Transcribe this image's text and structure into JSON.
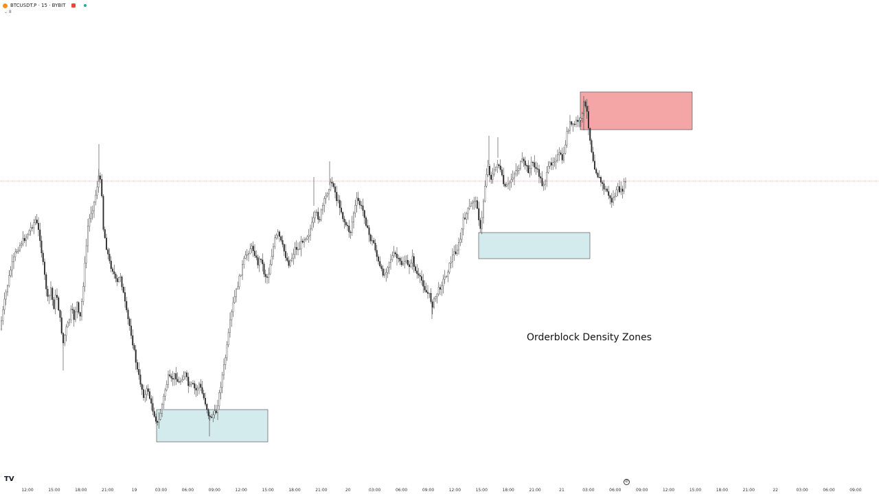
{
  "header": {
    "symbol": "BTCUSDT.P · 15 · BYBIT",
    "collapse_glyph": "⌄ 8"
  },
  "annotation": "Orderblock Density Zones",
  "logo_text": "TV",
  "nav_icon": "compass-icon",
  "colors": {
    "bull": "#ffffff",
    "bear": "#2b2b2b",
    "wick": "#3a3a3a",
    "bullish_zone": "#d4ebee",
    "bearish_zone": "#f4a6a6",
    "price_line": "#e8a0a0"
  },
  "chart_data": {
    "type": "candlestick",
    "interval": "15",
    "x_ticks": [
      "12:00",
      "15:00",
      "18:00",
      "21:00",
      "19",
      "03:00",
      "06:00",
      "09:00",
      "12:00",
      "15:00",
      "18:00",
      "21:00",
      "20",
      "03:00",
      "06:00",
      "09:00",
      "12:00",
      "15:00",
      "18:00",
      "21:00",
      "21",
      "03:00",
      "06:00",
      "09:00",
      "12:00",
      "15:00",
      "18:00",
      "21:00",
      "22",
      "03:00",
      "06:00",
      "09:00"
    ],
    "price_path": [
      [
        0,
        480
      ],
      [
        8,
        430
      ],
      [
        15,
        395
      ],
      [
        22,
        370
      ],
      [
        30,
        355
      ],
      [
        38,
        345
      ],
      [
        46,
        330
      ],
      [
        52,
        320
      ],
      [
        58,
        345
      ],
      [
        62,
        380
      ],
      [
        66,
        410
      ],
      [
        70,
        440
      ],
      [
        74,
        420
      ],
      [
        78,
        450
      ],
      [
        82,
        425
      ],
      [
        88,
        470
      ],
      [
        92,
        500
      ],
      [
        96,
        480
      ],
      [
        100,
        470
      ],
      [
        104,
        450
      ],
      [
        108,
        465
      ],
      [
        112,
        440
      ],
      [
        116,
        470
      ],
      [
        120,
        430
      ],
      [
        124,
        380
      ],
      [
        128,
        330
      ],
      [
        132,
        310
      ],
      [
        136,
        300
      ],
      [
        140,
        280
      ],
      [
        144,
        255
      ],
      [
        148,
        275
      ],
      [
        150,
        330
      ],
      [
        155,
        360
      ],
      [
        160,
        385
      ],
      [
        165,
        395
      ],
      [
        170,
        415
      ],
      [
        175,
        400
      ],
      [
        180,
        430
      ],
      [
        185,
        460
      ],
      [
        190,
        480
      ],
      [
        195,
        510
      ],
      [
        200,
        540
      ],
      [
        205,
        560
      ],
      [
        210,
        580
      ],
      [
        215,
        565
      ],
      [
        220,
        590
      ],
      [
        225,
        605
      ],
      [
        230,
        620
      ],
      [
        235,
        595
      ],
      [
        240,
        570
      ],
      [
        245,
        550
      ],
      [
        250,
        555
      ],
      [
        255,
        545
      ],
      [
        260,
        560
      ],
      [
        265,
        550
      ],
      [
        270,
        545
      ],
      [
        275,
        565
      ],
      [
        280,
        560
      ],
      [
        285,
        570
      ],
      [
        290,
        560
      ],
      [
        295,
        575
      ],
      [
        300,
        590
      ],
      [
        305,
        610
      ],
      [
        310,
        605
      ],
      [
        315,
        600
      ],
      [
        320,
        570
      ],
      [
        325,
        540
      ],
      [
        330,
        510
      ],
      [
        335,
        470
      ],
      [
        340,
        440
      ],
      [
        345,
        420
      ],
      [
        350,
        400
      ],
      [
        355,
        380
      ],
      [
        360,
        370
      ],
      [
        365,
        360
      ],
      [
        370,
        365
      ],
      [
        375,
        385
      ],
      [
        380,
        375
      ],
      [
        385,
        400
      ],
      [
        390,
        405
      ],
      [
        395,
        375
      ],
      [
        400,
        350
      ],
      [
        405,
        340
      ],
      [
        410,
        355
      ],
      [
        415,
        370
      ],
      [
        420,
        385
      ],
      [
        425,
        375
      ],
      [
        430,
        360
      ],
      [
        435,
        365
      ],
      [
        440,
        350
      ],
      [
        445,
        345
      ],
      [
        450,
        340
      ],
      [
        455,
        325
      ],
      [
        460,
        310
      ],
      [
        465,
        320
      ],
      [
        470,
        300
      ],
      [
        475,
        285
      ],
      [
        480,
        270
      ],
      [
        485,
        265
      ],
      [
        490,
        290
      ],
      [
        495,
        300
      ],
      [
        500,
        320
      ],
      [
        505,
        330
      ],
      [
        510,
        340
      ],
      [
        515,
        310
      ],
      [
        520,
        290
      ],
      [
        525,
        300
      ],
      [
        530,
        310
      ],
      [
        535,
        335
      ],
      [
        540,
        350
      ],
      [
        545,
        355
      ],
      [
        550,
        380
      ],
      [
        555,
        395
      ],
      [
        560,
        400
      ],
      [
        565,
        385
      ],
      [
        570,
        375
      ],
      [
        575,
        370
      ],
      [
        580,
        380
      ],
      [
        585,
        385
      ],
      [
        590,
        380
      ],
      [
        595,
        390
      ],
      [
        600,
        375
      ],
      [
        605,
        395
      ],
      [
        610,
        405
      ],
      [
        615,
        410
      ],
      [
        620,
        425
      ],
      [
        625,
        430
      ],
      [
        630,
        445
      ],
      [
        635,
        430
      ],
      [
        640,
        420
      ],
      [
        645,
        410
      ],
      [
        650,
        400
      ],
      [
        655,
        385
      ],
      [
        660,
        370
      ],
      [
        665,
        365
      ],
      [
        670,
        350
      ],
      [
        675,
        320
      ],
      [
        680,
        310
      ],
      [
        685,
        300
      ],
      [
        690,
        290
      ],
      [
        695,
        300
      ],
      [
        700,
        340
      ],
      [
        705,
        280
      ],
      [
        710,
        240
      ],
      [
        715,
        260
      ],
      [
        720,
        250
      ],
      [
        725,
        235
      ],
      [
        730,
        255
      ],
      [
        735,
        275
      ],
      [
        740,
        270
      ],
      [
        745,
        260
      ],
      [
        750,
        250
      ],
      [
        755,
        245
      ],
      [
        760,
        235
      ],
      [
        765,
        240
      ],
      [
        770,
        250
      ],
      [
        775,
        235
      ],
      [
        780,
        245
      ],
      [
        785,
        255
      ],
      [
        790,
        270
      ],
      [
        795,
        260
      ],
      [
        800,
        240
      ],
      [
        805,
        235
      ],
      [
        810,
        230
      ],
      [
        815,
        225
      ],
      [
        820,
        235
      ],
      [
        825,
        195
      ],
      [
        830,
        180
      ],
      [
        835,
        185
      ],
      [
        840,
        175
      ],
      [
        845,
        180
      ],
      [
        850,
        150
      ],
      [
        855,
        165
      ],
      [
        860,
        210
      ],
      [
        865,
        240
      ],
      [
        870,
        255
      ],
      [
        875,
        265
      ],
      [
        880,
        275
      ],
      [
        885,
        280
      ],
      [
        890,
        295
      ],
      [
        895,
        285
      ],
      [
        900,
        275
      ],
      [
        905,
        280
      ],
      [
        910,
        265
      ],
      [
        913,
        260
      ]
    ],
    "zones": [
      {
        "type": "bullish",
        "from_bar": 228,
        "to_bar": 390,
        "top": 597,
        "bottom": 644
      },
      {
        "type": "bullish",
        "from_bar": 697,
        "to_bar": 859,
        "top": 339,
        "bottom": 377
      },
      {
        "type": "bearish",
        "from_bar": 845,
        "to_bar": 1008,
        "top": 134,
        "bottom": 189
      }
    ],
    "current_price_level": 264
  }
}
